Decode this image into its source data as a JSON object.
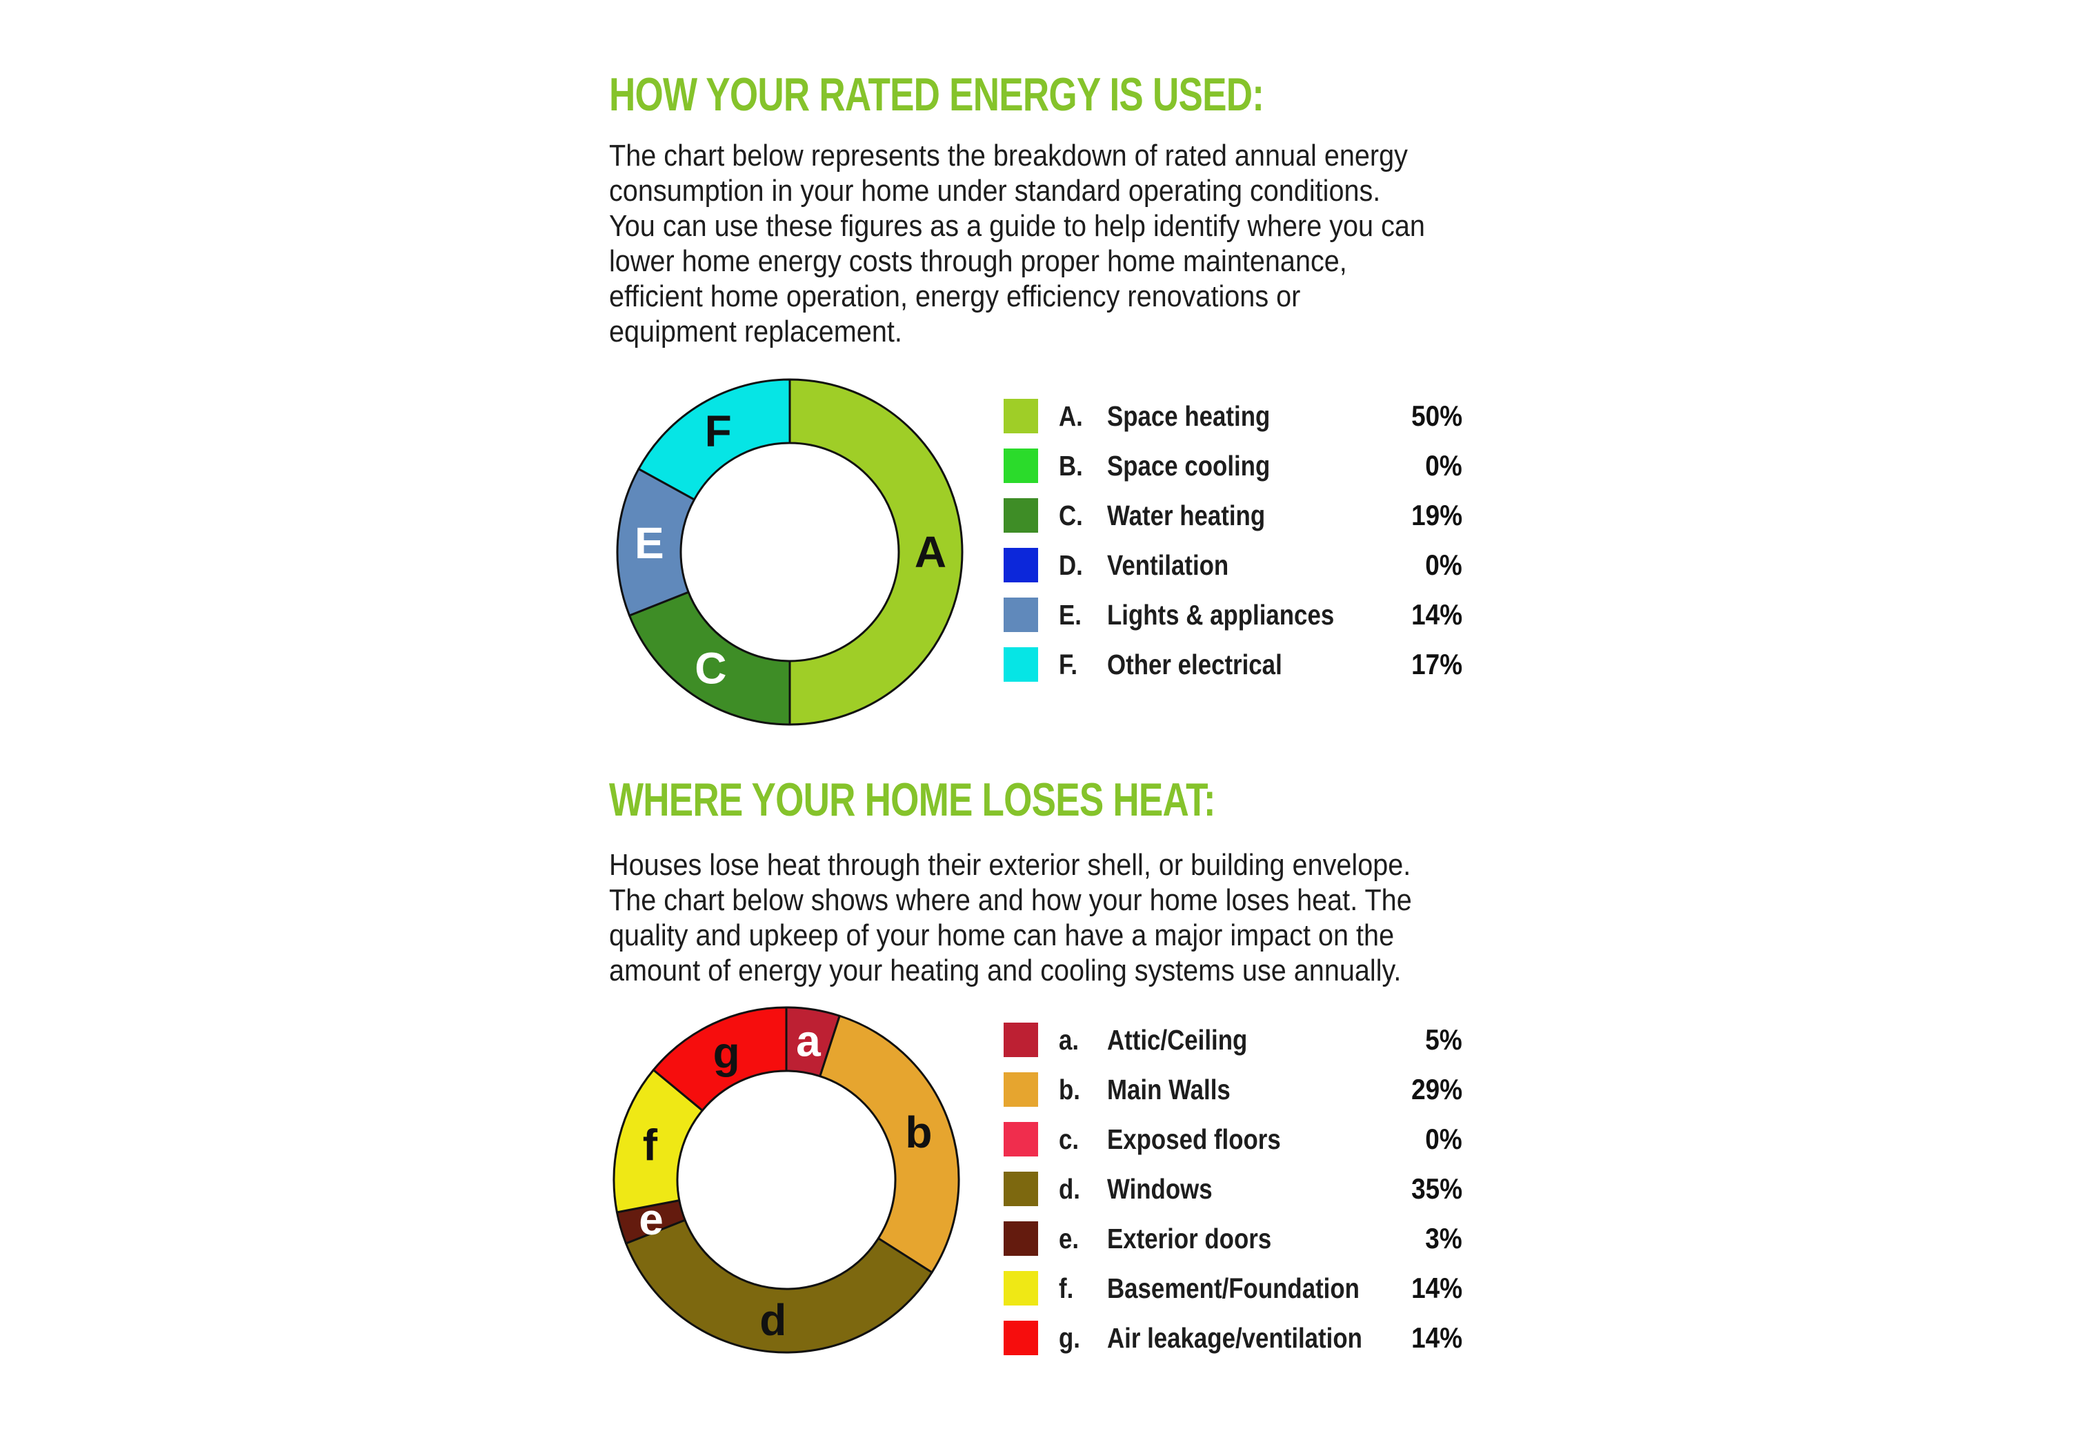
{
  "page": {
    "background": "#FFFFFF",
    "text_color": "#1D1D1D",
    "accent_green": "#85C32B"
  },
  "sections": [
    {
      "title": "HOW YOUR RATED ENERGY IS USED:",
      "paragraph_lines": [
        "The chart below represents the breakdown of rated annual energy",
        "consumption in your home under standard operating conditions.",
        "You can use these figures as a guide to help identify where you can",
        "lower home energy costs through proper home maintenance,",
        "efficient home operation, energy efficiency renovations or",
        "equipment replacement."
      ]
    },
    {
      "title": "WHERE YOUR HOME LOSES HEAT:",
      "paragraph_lines": [
        "Houses lose heat through their exterior shell, or building envelope.",
        "The chart below shows where and how your home loses heat. The",
        "quality and upkeep of your home can have a major impact on the",
        "amount of energy your heating and cooling systems use annually."
      ]
    }
  ],
  "chart_data": [
    {
      "type": "pie",
      "subtype": "donut",
      "title": "Rated annual energy consumption breakdown",
      "start_angle_deg": 0,
      "direction": "clockwise",
      "inner_radius_ratio": 0.632,
      "legend_position": "right",
      "labels_on_slices": true,
      "slices": [
        {
          "letter": "A",
          "letter_display": "A.",
          "label": "Space heating",
          "value_pct": 50,
          "pct_display": "50%",
          "color": "#9FCE27",
          "letter_color": "#111111"
        },
        {
          "letter": "B",
          "letter_display": "B.",
          "label": "Space cooling",
          "value_pct": 0,
          "pct_display": "0%",
          "color": "#2BDB2B"
        },
        {
          "letter": "C",
          "letter_display": "C.",
          "label": "Water heating",
          "value_pct": 19,
          "pct_display": "19%",
          "color": "#3E8D26",
          "letter_color": "#FFFFFF"
        },
        {
          "letter": "D",
          "letter_display": "D.",
          "label": "Ventilation",
          "value_pct": 0,
          "pct_display": "0%",
          "color": "#0C27DA"
        },
        {
          "letter": "E",
          "letter_display": "E.",
          "label": "Lights & appliances",
          "value_pct": 14,
          "pct_display": "14%",
          "color": "#6089BB",
          "letter_color": "#FFFFFF"
        },
        {
          "letter": "F",
          "letter_display": "F.",
          "label": "Other electrical",
          "value_pct": 17,
          "pct_display": "17%",
          "color": "#06E5E5",
          "letter_color": "#111111"
        }
      ]
    },
    {
      "type": "pie",
      "subtype": "donut",
      "title": "Where your home loses heat",
      "start_angle_deg": 0,
      "direction": "clockwise",
      "inner_radius_ratio": 0.632,
      "legend_position": "right",
      "labels_on_slices": true,
      "slices": [
        {
          "letter": "a",
          "letter_display": "a.",
          "label": "Attic/Ceiling",
          "value_pct": 5,
          "pct_display": "5%",
          "color": "#BD2033",
          "letter_color": "#FFFFFF"
        },
        {
          "letter": "b",
          "letter_display": "b.",
          "label": "Main Walls",
          "value_pct": 29,
          "pct_display": "29%",
          "color": "#E6A52F",
          "letter_color": "#111111"
        },
        {
          "letter": "c",
          "letter_display": "c.",
          "label": "Exposed floors",
          "value_pct": 0,
          "pct_display": "0%",
          "color": "#F02D4D"
        },
        {
          "letter": "d",
          "letter_display": "d.",
          "label": "Windows",
          "value_pct": 35,
          "pct_display": "35%",
          "color": "#7D680F",
          "letter_color": "#111111"
        },
        {
          "letter": "e",
          "letter_display": "e.",
          "label": "Exterior doors",
          "value_pct": 3,
          "pct_display": "3%",
          "color": "#641B0E",
          "letter_color": "#FFFFFF"
        },
        {
          "letter": "f",
          "letter_display": "f.",
          "label": "Basement/Foundation",
          "value_pct": 14,
          "pct_display": "14%",
          "color": "#EFE815",
          "letter_color": "#111111"
        },
        {
          "letter": "g",
          "letter_display": "g.",
          "label": "Air leakage/ventilation",
          "value_pct": 14,
          "pct_display": "14%",
          "color": "#F60D0D",
          "letter_color": "#111111"
        }
      ]
    }
  ]
}
